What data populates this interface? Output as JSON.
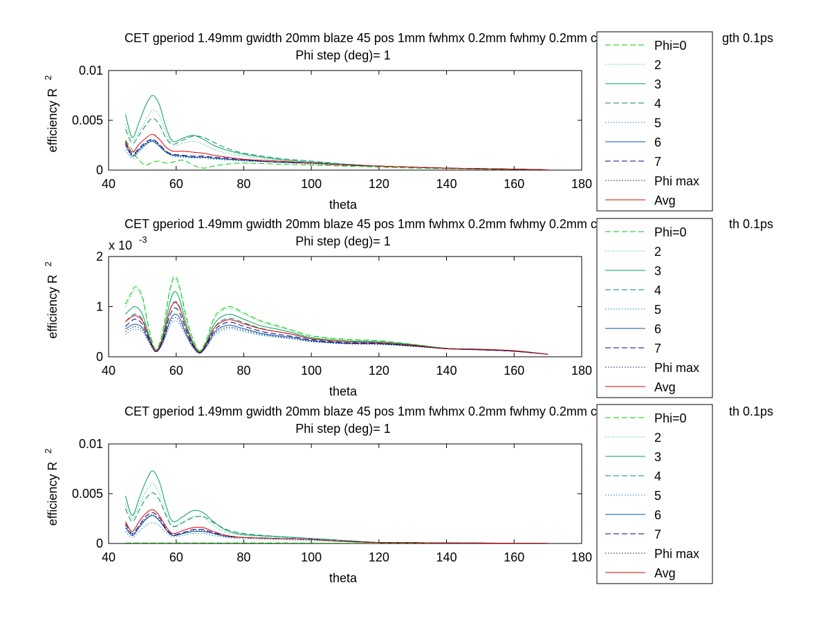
{
  "figure": {
    "background": "#ffffff"
  },
  "legend_entries": [
    {
      "label": "Phi=0",
      "color": "#00cc00",
      "dash": "dashed"
    },
    {
      "label": "2",
      "color": "#2ecc71",
      "dash": "dotted"
    },
    {
      "label": "3",
      "color": "#00a050",
      "dash": "solid"
    },
    {
      "label": "4",
      "color": "#008080",
      "dash": "dashed"
    },
    {
      "label": "5",
      "color": "#0080c0",
      "dash": "dotted"
    },
    {
      "label": "6",
      "color": "#0050b0",
      "dash": "solid"
    },
    {
      "label": "7",
      "color": "#000080",
      "dash": "dashed"
    },
    {
      "label": "Phi max",
      "color": "#000040",
      "dash": "dotted"
    },
    {
      "label": "Avg",
      "color": "#dd0000",
      "dash": "solid"
    }
  ],
  "chart_data": [
    {
      "type": "line",
      "title_line1": "CET gperiod 1.49mm gwidth 20mm blaze 45 pos 1mm fwhmx 0.2mm fwhmy 0.2mm charge 2",
      "title_line1_tail": "gth 0.1ps",
      "title_line2": "Phi step (deg)= 1",
      "xlabel": "theta",
      "ylabel": "efficiency R",
      "ylabel_sup": "2",
      "exponent": "",
      "xlim": [
        40,
        180
      ],
      "ylim": [
        0,
        0.01
      ],
      "xticks": [
        40,
        60,
        80,
        100,
        120,
        140,
        160,
        180
      ],
      "xtick_labels": [
        "40",
        "60",
        "80",
        "100",
        "120",
        "140",
        "160",
        "180"
      ],
      "yticks": [
        0,
        0.005,
        0.01
      ],
      "ytick_labels": [
        "0",
        "0.005",
        "0.01"
      ],
      "grid": false,
      "legend_placement": "right",
      "x": [
        45,
        47,
        49,
        51,
        53,
        55,
        57,
        59,
        62,
        65,
        68,
        71,
        75,
        80,
        90,
        100,
        110,
        120,
        130,
        140,
        150,
        160,
        170
      ],
      "series": [
        {
          "name": "Phi=0",
          "values": [
            0.003,
            0.002,
            0.001,
            0.0005,
            0.0008,
            0.0009,
            0.0007,
            0.0008,
            0.001,
            0.0005,
            0.0002,
            0.0004,
            0.0006,
            0.0007,
            0.0006,
            0.0005,
            0.0004,
            0.0003,
            0.0002,
            0.00015,
            0.0001,
            5e-05,
            2e-05
          ]
        },
        {
          "name": "2",
          "values": [
            0.0046,
            0.003,
            0.0038,
            0.005,
            0.006,
            0.0055,
            0.0038,
            0.0025,
            0.0027,
            0.0029,
            0.0026,
            0.0021,
            0.0017,
            0.0014,
            0.001,
            0.0008,
            0.0006,
            0.0004,
            0.0003,
            0.0002,
            0.00015,
            0.0001,
            3e-05
          ]
        },
        {
          "name": "3",
          "values": [
            0.0056,
            0.0033,
            0.0048,
            0.0065,
            0.0075,
            0.0066,
            0.0043,
            0.0029,
            0.0032,
            0.0035,
            0.0031,
            0.0025,
            0.002,
            0.0016,
            0.0011,
            0.0008,
            0.0006,
            0.0004,
            0.0003,
            0.0002,
            0.00015,
            0.0001,
            3e-05
          ]
        },
        {
          "name": "4",
          "values": [
            0.0041,
            0.0027,
            0.0035,
            0.0045,
            0.0052,
            0.0046,
            0.0032,
            0.0026,
            0.003,
            0.0034,
            0.0033,
            0.0028,
            0.0022,
            0.0017,
            0.0012,
            0.0009,
            0.0006,
            0.0004,
            0.0003,
            0.0002,
            0.00015,
            0.0001,
            3e-05
          ]
        },
        {
          "name": "5",
          "values": [
            0.002,
            0.0012,
            0.0018,
            0.0025,
            0.003,
            0.0026,
            0.0018,
            0.0014,
            0.0013,
            0.0012,
            0.0012,
            0.0011,
            0.001,
            0.0009,
            0.0008,
            0.0006,
            0.0005,
            0.0004,
            0.0003,
            0.0002,
            0.00015,
            0.0001,
            3e-05
          ]
        },
        {
          "name": "6",
          "values": [
            0.0025,
            0.0014,
            0.002,
            0.0026,
            0.0029,
            0.0024,
            0.0018,
            0.0015,
            0.0014,
            0.0013,
            0.0013,
            0.0012,
            0.0011,
            0.001,
            0.0008,
            0.0007,
            0.0005,
            0.0004,
            0.0003,
            0.0002,
            0.00015,
            0.0001,
            3e-05
          ]
        },
        {
          "name": "7",
          "values": [
            0.0028,
            0.0016,
            0.0022,
            0.0028,
            0.0031,
            0.0026,
            0.0019,
            0.0016,
            0.0015,
            0.0014,
            0.0014,
            0.0013,
            0.0012,
            0.001,
            0.0008,
            0.0007,
            0.0005,
            0.0004,
            0.0003,
            0.0002,
            0.00015,
            0.0001,
            3e-05
          ]
        },
        {
          "name": "Phi max",
          "values": [
            0.0026,
            0.0015,
            0.0021,
            0.0027,
            0.003,
            0.0025,
            0.0018,
            0.0015,
            0.0014,
            0.0013,
            0.0013,
            0.0012,
            0.0011,
            0.001,
            0.0008,
            0.0007,
            0.0005,
            0.0004,
            0.0003,
            0.0002,
            0.00015,
            0.0001,
            3e-05
          ]
        },
        {
          "name": "Avg",
          "values": [
            0.0029,
            0.0018,
            0.0026,
            0.0032,
            0.0036,
            0.0031,
            0.0023,
            0.0019,
            0.0019,
            0.0018,
            0.0017,
            0.0015,
            0.0013,
            0.0011,
            0.0009,
            0.0007,
            0.0005,
            0.0004,
            0.0003,
            0.0002,
            0.00015,
            0.0001,
            3e-05
          ]
        }
      ]
    },
    {
      "type": "line",
      "title_line1": "CET gperiod 1.49mm gwidth 20mm blaze 45 pos 1mm fwhmx 0.2mm fwhmy 0.2mm charge 2",
      "title_line1_tail": "th 0.1ps",
      "title_line2": "Phi step (deg)= 1",
      "xlabel": "theta",
      "ylabel": "efficiency R",
      "ylabel_sup": "2",
      "exponent": "x 10",
      "exponent_sup": "-3",
      "xlim": [
        40,
        180
      ],
      "ylim": [
        0,
        2
      ],
      "xticks": [
        40,
        60,
        80,
        100,
        120,
        140,
        160,
        180
      ],
      "xtick_labels": [
        "40",
        "60",
        "80",
        "100",
        "120",
        "140",
        "160",
        "180"
      ],
      "yticks": [
        0,
        1,
        2
      ],
      "ytick_labels": [
        "0",
        "1",
        "2"
      ],
      "grid": false,
      "legend_placement": "right",
      "x": [
        45,
        46.5,
        48,
        50,
        52,
        54,
        56,
        58,
        59.5,
        61,
        63,
        65,
        67,
        69,
        71,
        73,
        76,
        80,
        85,
        90,
        95,
        100,
        110,
        120,
        130,
        140,
        150,
        160,
        170
      ],
      "series": [
        {
          "name": "Phi=0",
          "values": [
            1.05,
            1.25,
            1.4,
            1.2,
            0.55,
            0.15,
            0.5,
            1.3,
            1.6,
            1.4,
            0.8,
            0.35,
            0.12,
            0.35,
            0.75,
            0.92,
            1.0,
            0.88,
            0.72,
            0.62,
            0.52,
            0.42,
            0.35,
            0.32,
            0.25,
            0.17,
            0.15,
            0.12,
            0.05
          ]
        },
        {
          "name": "2",
          "values": [
            1.0,
            1.2,
            1.35,
            1.15,
            0.5,
            0.15,
            0.45,
            1.25,
            1.55,
            1.35,
            0.75,
            0.32,
            0.12,
            0.33,
            0.7,
            0.88,
            0.97,
            0.85,
            0.7,
            0.6,
            0.5,
            0.4,
            0.34,
            0.31,
            0.25,
            0.17,
            0.15,
            0.12,
            0.05
          ]
        },
        {
          "name": "3",
          "values": [
            0.85,
            0.95,
            1.0,
            0.85,
            0.42,
            0.12,
            0.4,
            1.05,
            1.3,
            1.15,
            0.65,
            0.28,
            0.1,
            0.3,
            0.62,
            0.78,
            0.85,
            0.75,
            0.62,
            0.55,
            0.47,
            0.38,
            0.32,
            0.3,
            0.24,
            0.17,
            0.15,
            0.12,
            0.05
          ]
        },
        {
          "name": "4",
          "values": [
            0.7,
            0.8,
            0.85,
            0.75,
            0.38,
            0.12,
            0.35,
            0.9,
            1.1,
            1.0,
            0.58,
            0.25,
            0.09,
            0.27,
            0.55,
            0.7,
            0.77,
            0.68,
            0.57,
            0.5,
            0.44,
            0.36,
            0.3,
            0.28,
            0.23,
            0.17,
            0.15,
            0.12,
            0.05
          ]
        },
        {
          "name": "5",
          "values": [
            0.45,
            0.52,
            0.55,
            0.5,
            0.28,
            0.1,
            0.25,
            0.6,
            0.72,
            0.65,
            0.4,
            0.18,
            0.07,
            0.2,
            0.4,
            0.5,
            0.56,
            0.5,
            0.43,
            0.39,
            0.35,
            0.3,
            0.26,
            0.25,
            0.21,
            0.16,
            0.14,
            0.11,
            0.05
          ]
        },
        {
          "name": "6",
          "values": [
            0.55,
            0.62,
            0.65,
            0.58,
            0.32,
            0.11,
            0.3,
            0.7,
            0.85,
            0.78,
            0.46,
            0.21,
            0.08,
            0.23,
            0.46,
            0.58,
            0.63,
            0.56,
            0.47,
            0.42,
            0.38,
            0.32,
            0.27,
            0.26,
            0.22,
            0.16,
            0.14,
            0.11,
            0.05
          ]
        },
        {
          "name": "7",
          "values": [
            0.6,
            0.7,
            0.75,
            0.65,
            0.35,
            0.11,
            0.32,
            0.8,
            0.97,
            0.88,
            0.52,
            0.23,
            0.08,
            0.25,
            0.5,
            0.63,
            0.69,
            0.61,
            0.51,
            0.45,
            0.4,
            0.34,
            0.28,
            0.27,
            0.22,
            0.16,
            0.14,
            0.11,
            0.05
          ]
        },
        {
          "name": "Phi max",
          "values": [
            0.5,
            0.57,
            0.6,
            0.54,
            0.3,
            0.1,
            0.28,
            0.65,
            0.78,
            0.71,
            0.43,
            0.19,
            0.07,
            0.21,
            0.43,
            0.54,
            0.59,
            0.53,
            0.45,
            0.4,
            0.36,
            0.31,
            0.26,
            0.25,
            0.21,
            0.16,
            0.14,
            0.11,
            0.05
          ]
        },
        {
          "name": "Avg",
          "values": [
            0.7,
            0.78,
            0.82,
            0.72,
            0.38,
            0.12,
            0.37,
            0.9,
            1.08,
            0.98,
            0.58,
            0.25,
            0.09,
            0.27,
            0.55,
            0.68,
            0.74,
            0.66,
            0.56,
            0.5,
            0.44,
            0.36,
            0.3,
            0.28,
            0.23,
            0.16,
            0.15,
            0.12,
            0.05
          ]
        }
      ]
    },
    {
      "type": "line",
      "title_line1": "CET gperiod 1.49mm gwidth 20mm blaze 45 pos 1mm fwhmx 0.2mm fwhmy 0.2mm charge 2",
      "title_line1_tail": "th 0.1ps",
      "title_line2": "Phi step (deg)= 1",
      "xlabel": "theta",
      "ylabel": "efficiency R",
      "ylabel_sup": "2",
      "exponent": "",
      "xlim": [
        40,
        180
      ],
      "ylim": [
        0,
        0.01
      ],
      "xticks": [
        40,
        60,
        80,
        100,
        120,
        140,
        160,
        180
      ],
      "xtick_labels": [
        "40",
        "60",
        "80",
        "100",
        "120",
        "140",
        "160",
        "180"
      ],
      "yticks": [
        0,
        0.005,
        0.01
      ],
      "ytick_labels": [
        "0",
        "0.005",
        "0.01"
      ],
      "grid": false,
      "legend_placement": "right",
      "x": [
        45,
        47,
        49,
        51,
        53,
        55,
        57,
        59,
        62,
        65,
        68,
        71,
        75,
        80,
        90,
        100,
        110,
        120,
        130,
        140,
        150,
        160,
        170
      ],
      "series": [
        {
          "name": "Phi=0",
          "values": [
            5e-05,
            5e-05,
            5e-05,
            5e-05,
            5e-05,
            5e-05,
            5e-05,
            5e-05,
            5e-05,
            5e-05,
            5e-05,
            5e-05,
            5e-05,
            5e-05,
            5e-05,
            4e-05,
            3e-05,
            2e-05,
            2e-05,
            1e-05,
            1e-05,
            1e-05,
            1e-05
          ]
        },
        {
          "name": "2",
          "values": [
            0.004,
            0.0025,
            0.0038,
            0.0052,
            0.006,
            0.005,
            0.003,
            0.0018,
            0.0022,
            0.0027,
            0.0026,
            0.0018,
            0.0011,
            0.0008,
            0.0006,
            0.0005,
            0.0003,
            0.0001,
            8e-05,
            5e-05,
            4e-05,
            3e-05,
            1e-05
          ]
        },
        {
          "name": "3",
          "values": [
            0.0048,
            0.0028,
            0.0045,
            0.0062,
            0.0073,
            0.0062,
            0.0038,
            0.0022,
            0.0027,
            0.0033,
            0.0031,
            0.0022,
            0.0013,
            0.0009,
            0.0007,
            0.0005,
            0.0003,
            0.0001,
            8e-05,
            5e-05,
            4e-05,
            3e-05,
            1e-05
          ]
        },
        {
          "name": "4",
          "values": [
            0.0035,
            0.0022,
            0.0033,
            0.0045,
            0.0051,
            0.0044,
            0.0028,
            0.0017,
            0.0021,
            0.0026,
            0.0027,
            0.0021,
            0.0014,
            0.001,
            0.0007,
            0.0005,
            0.0003,
            0.0001,
            8e-05,
            5e-05,
            4e-05,
            3e-05,
            1e-05
          ]
        },
        {
          "name": "5",
          "values": [
            0.0012,
            0.0006,
            0.0012,
            0.0018,
            0.0021,
            0.0018,
            0.0011,
            0.0007,
            0.0008,
            0.001,
            0.001,
            0.0008,
            0.0006,
            0.0005,
            0.0004,
            0.0003,
            0.0002,
            0.0001,
            8e-05,
            5e-05,
            4e-05,
            3e-05,
            1e-05
          ]
        },
        {
          "name": "6",
          "values": [
            0.0016,
            0.0008,
            0.0016,
            0.0024,
            0.0028,
            0.0023,
            0.0014,
            0.0008,
            0.001,
            0.0012,
            0.0012,
            0.001,
            0.0007,
            0.0006,
            0.0005,
            0.0004,
            0.0002,
            0.0001,
            8e-05,
            5e-05,
            4e-05,
            3e-05,
            1e-05
          ]
        },
        {
          "name": "7",
          "values": [
            0.002,
            0.001,
            0.0018,
            0.0027,
            0.0031,
            0.0026,
            0.0015,
            0.0009,
            0.0011,
            0.0014,
            0.0014,
            0.0011,
            0.0008,
            0.0006,
            0.0005,
            0.0004,
            0.0002,
            0.0001,
            8e-05,
            5e-05,
            4e-05,
            3e-05,
            1e-05
          ]
        },
        {
          "name": "Phi max",
          "values": [
            0.0018,
            0.0009,
            0.0017,
            0.0025,
            0.0029,
            0.0024,
            0.0014,
            0.0008,
            0.001,
            0.0013,
            0.0013,
            0.001,
            0.0007,
            0.0006,
            0.0005,
            0.0004,
            0.0002,
            0.0001,
            8e-05,
            5e-05,
            4e-05,
            3e-05,
            1e-05
          ]
        },
        {
          "name": "Avg",
          "values": [
            0.0022,
            0.0012,
            0.0022,
            0.003,
            0.0034,
            0.0028,
            0.0017,
            0.001,
            0.0013,
            0.0016,
            0.0016,
            0.0012,
            0.0008,
            0.0006,
            0.0005,
            0.0004,
            0.0002,
            0.0001,
            8e-05,
            5e-05,
            4e-05,
            3e-05,
            1e-05
          ]
        }
      ]
    }
  ]
}
